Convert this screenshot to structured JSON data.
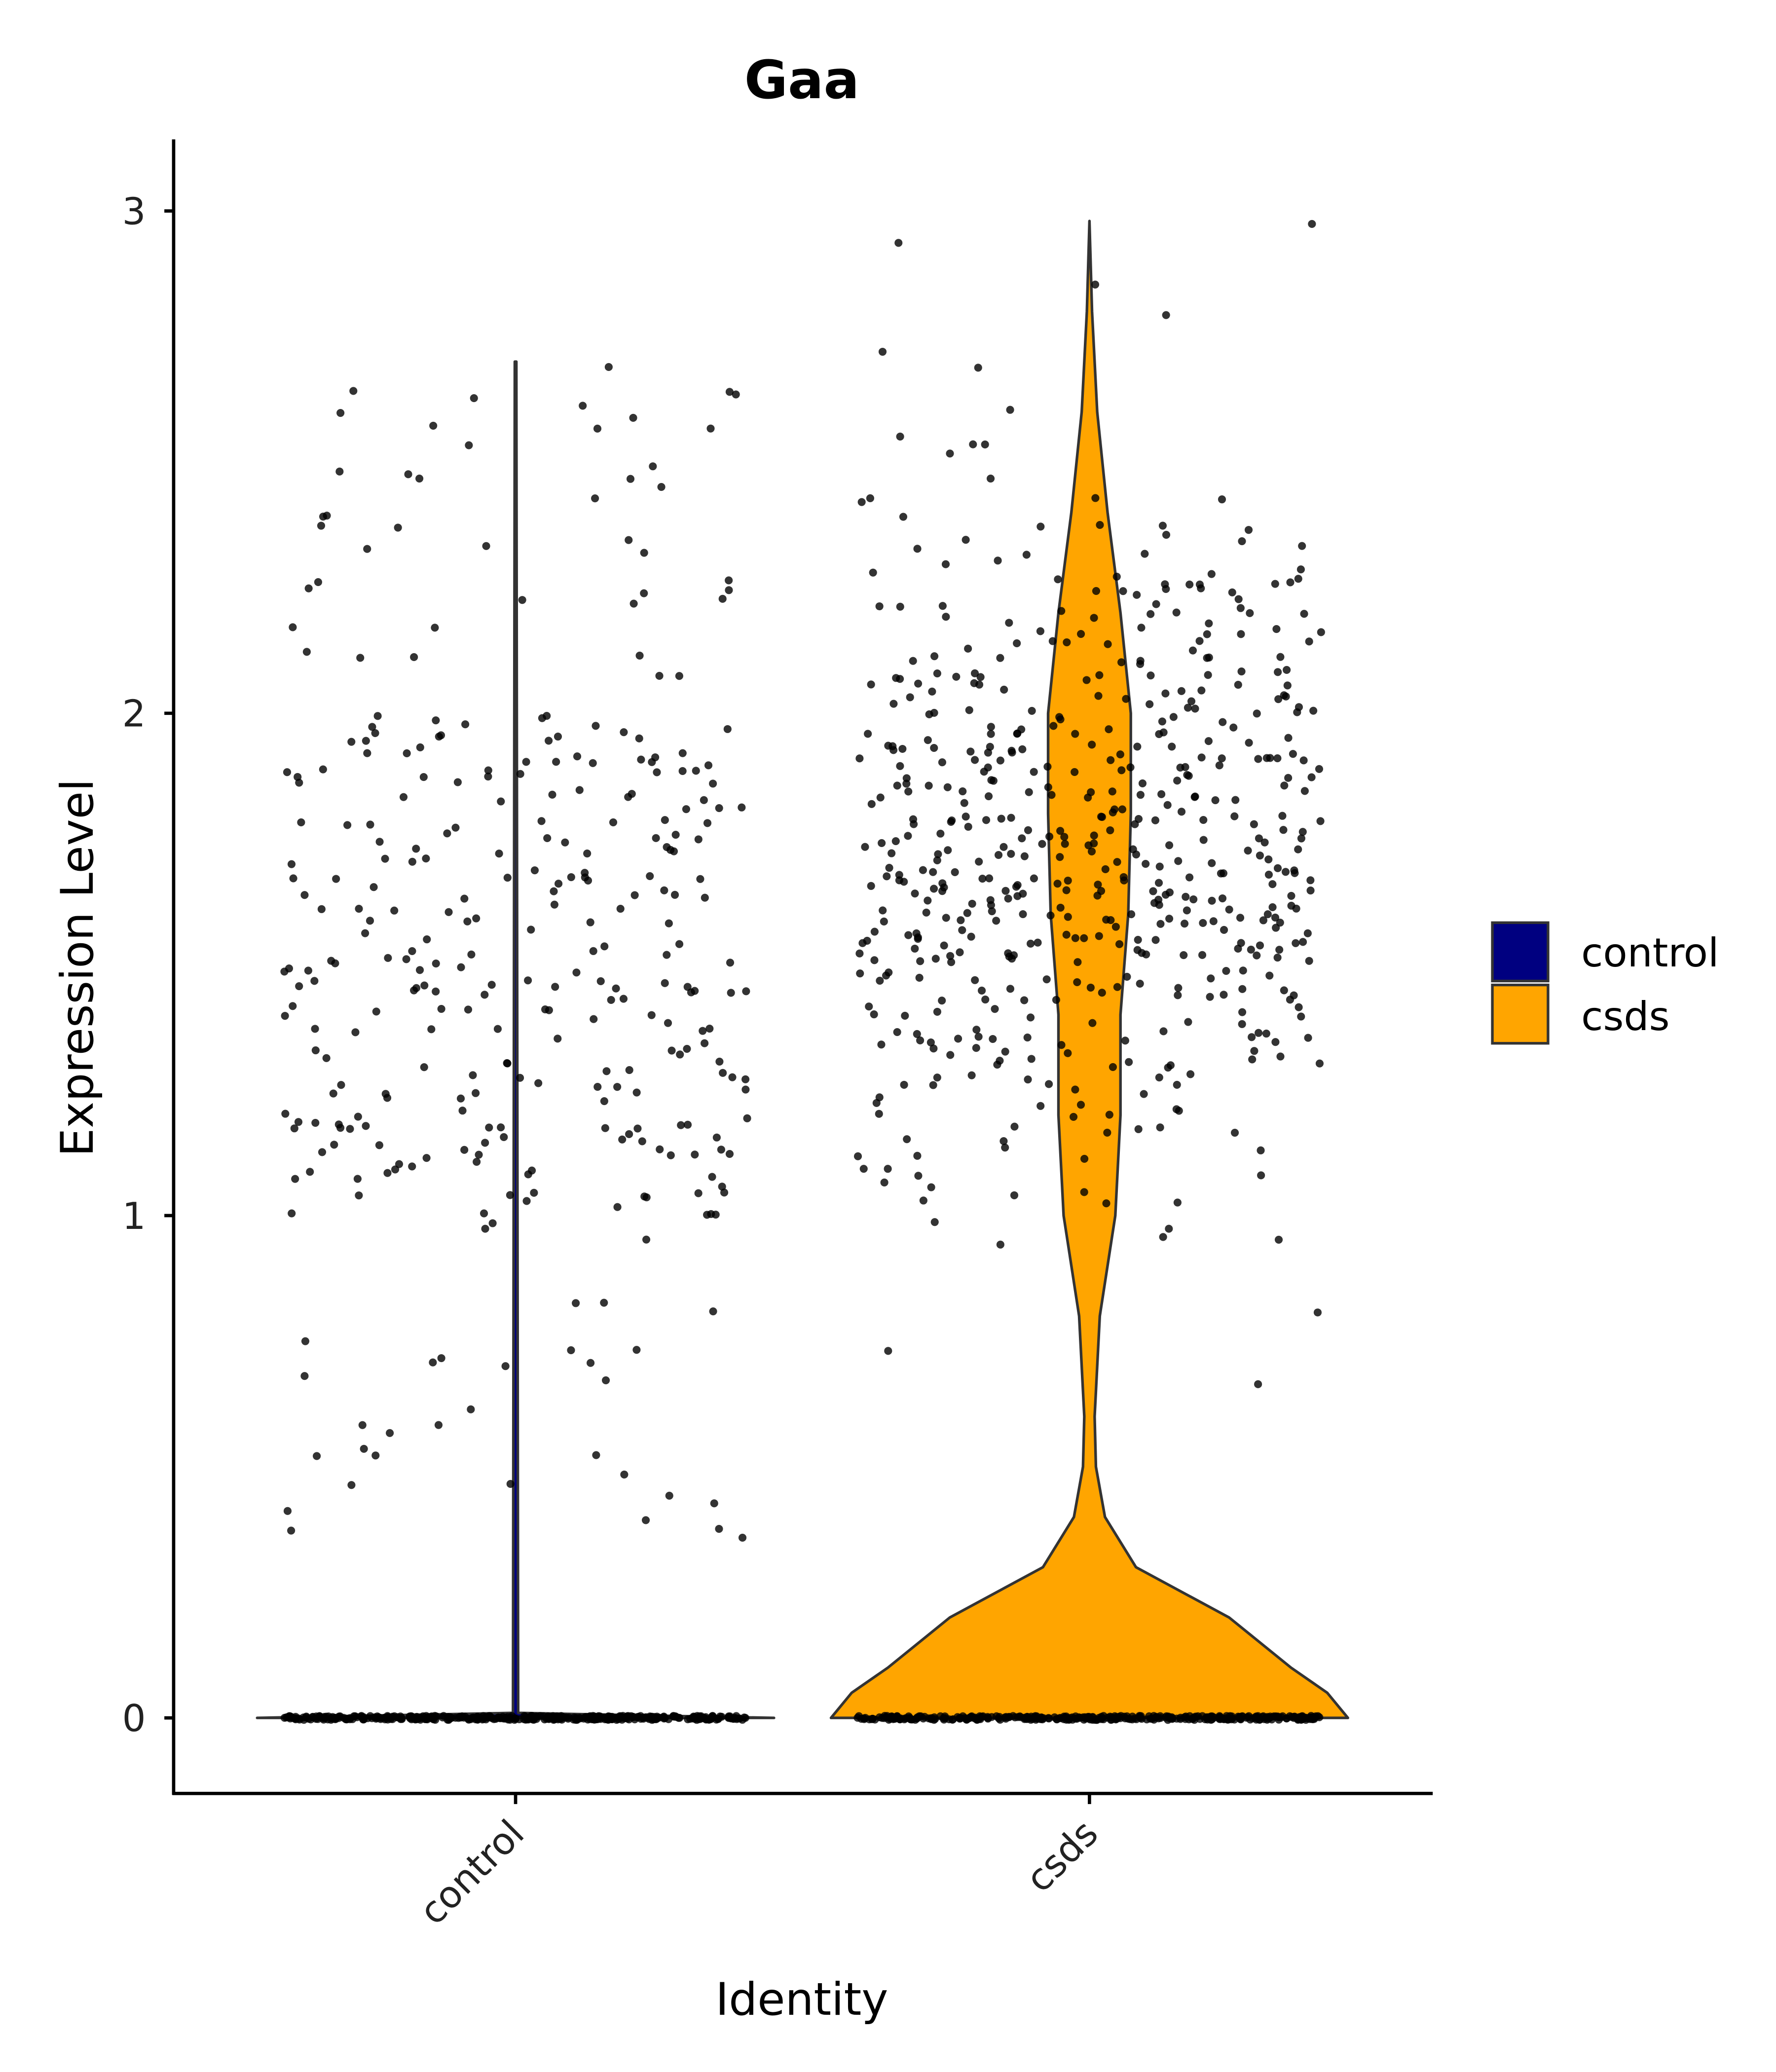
{
  "chart_data": {
    "type": "violin",
    "title": "Gaa",
    "xlabel": "Identity",
    "ylabel": "Expression Level",
    "ylim": [
      -0.15,
      3.15
    ],
    "yticks": [
      "0",
      "1",
      "2",
      "3"
    ],
    "categories": [
      "control",
      "csds"
    ],
    "colors": {
      "control": "#000080",
      "csds": "#FFA500"
    },
    "legend": {
      "position": "right",
      "entries": [
        "control",
        "csds"
      ]
    },
    "violins": [
      {
        "name": "control",
        "max": 2.7,
        "profile": [
          [
            0,
            1.0
          ],
          [
            0.01,
            0.01
          ],
          [
            2.7,
            0.003
          ]
        ]
      },
      {
        "name": "csds",
        "max": 2.98,
        "profile": [
          [
            0,
            1.0
          ],
          [
            0.05,
            0.92
          ],
          [
            0.1,
            0.78
          ],
          [
            0.2,
            0.54
          ],
          [
            0.3,
            0.18
          ],
          [
            0.4,
            0.06
          ],
          [
            0.5,
            0.025
          ],
          [
            0.6,
            0.02
          ],
          [
            0.8,
            0.04
          ],
          [
            1.0,
            0.1
          ],
          [
            1.2,
            0.12
          ],
          [
            1.4,
            0.12
          ],
          [
            1.6,
            0.15
          ],
          [
            1.8,
            0.16
          ],
          [
            2.0,
            0.16
          ],
          [
            2.2,
            0.12
          ],
          [
            2.4,
            0.07
          ],
          [
            2.6,
            0.03
          ],
          [
            2.8,
            0.01
          ],
          [
            2.98,
            0
          ]
        ]
      }
    ],
    "points": [
      {
        "group": "control",
        "nonzero_count": 330,
        "zero_count": 400,
        "range": [
          0.3,
          2.7
        ]
      },
      {
        "group": "csds",
        "nonzero_count": 560,
        "zero_count": 350,
        "range": [
          0.35,
          2.98
        ]
      }
    ]
  }
}
